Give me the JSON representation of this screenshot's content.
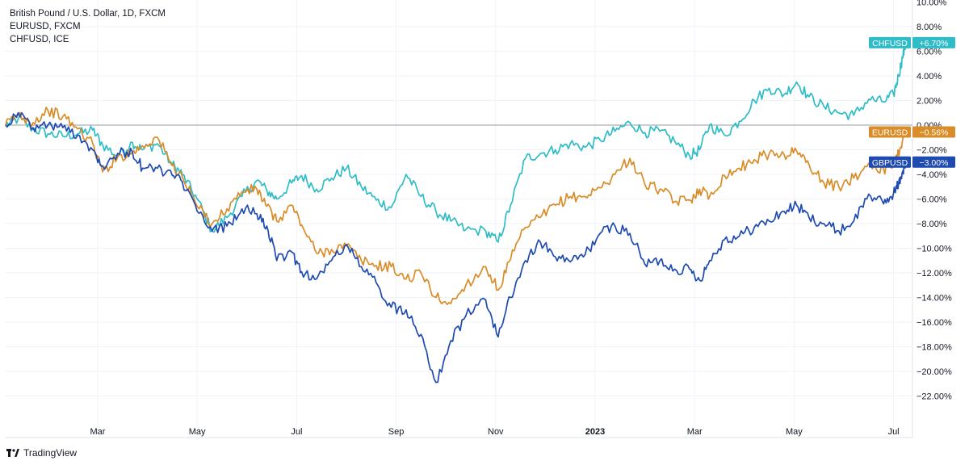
{
  "legend": {
    "line1": "British Pound / U.S. Dollar, 1D, FXCM",
    "line2": "EURUSD, FXCM",
    "line3": "CHFUSD, ICE"
  },
  "brand": {
    "name": "TradingView"
  },
  "chart_data": {
    "type": "line",
    "y_unit": "%",
    "ylim": [
      -23,
      10
    ],
    "y_ticks": [
      "8.00%",
      "6.00%",
      "4.00%",
      "2.00%",
      "0.00%",
      "−2.00%",
      "−4.00%",
      "−6.00%",
      "−8.00%",
      "−10.00%",
      "−12.00%",
      "−14.00%",
      "−16.00%",
      "−18.00%",
      "−20.00%",
      "−22.00%"
    ],
    "y_tick_values": [
      8,
      6,
      4,
      2,
      0,
      -2,
      -4,
      -6,
      -8,
      -10,
      -12,
      -14,
      -16,
      -18,
      -20,
      -22
    ],
    "x_ticks": [
      {
        "label": "Mar",
        "t": 2.0,
        "bold": false
      },
      {
        "label": "May",
        "t": 4.0,
        "bold": false
      },
      {
        "label": "Jul",
        "t": 6.0,
        "bold": false
      },
      {
        "label": "Sep",
        "t": 8.0,
        "bold": false
      },
      {
        "label": "Nov",
        "t": 10.0,
        "bold": false
      },
      {
        "label": "2023",
        "t": 12.0,
        "bold": true
      },
      {
        "label": "Mar",
        "t": 14.0,
        "bold": false
      },
      {
        "label": "May",
        "t": 16.0,
        "bold": false
      },
      {
        "label": "Jul",
        "t": 18.0,
        "bold": false
      }
    ],
    "x_range": [
      0.15,
      18.25
    ],
    "zero_line": true,
    "series": [
      {
        "name": "CHFUSD",
        "color": "#2fbcc7",
        "badge": "+6.70%",
        "points": [
          [
            0.15,
            0
          ],
          [
            0.4,
            0.5
          ],
          [
            0.7,
            -0.3
          ],
          [
            1.0,
            -0.7
          ],
          [
            1.3,
            -0.9
          ],
          [
            1.6,
            -0.7
          ],
          [
            1.9,
            -0.4
          ],
          [
            2.1,
            -1.6
          ],
          [
            2.4,
            -2.5
          ],
          [
            2.7,
            -1.4
          ],
          [
            2.9,
            -2.0
          ],
          [
            3.2,
            -1.5
          ],
          [
            3.5,
            -3.2
          ],
          [
            3.7,
            -4.0
          ],
          [
            4.0,
            -6.0
          ],
          [
            4.3,
            -8.6
          ],
          [
            4.6,
            -7.5
          ],
          [
            4.9,
            -5.8
          ],
          [
            5.2,
            -4.5
          ],
          [
            5.4,
            -5.3
          ],
          [
            5.6,
            -6.0
          ],
          [
            5.9,
            -4.7
          ],
          [
            6.1,
            -4.1
          ],
          [
            6.4,
            -5.2
          ],
          [
            6.7,
            -4.3
          ],
          [
            7.0,
            -3.5
          ],
          [
            7.3,
            -5.0
          ],
          [
            7.6,
            -6.1
          ],
          [
            7.9,
            -6.7
          ],
          [
            8.2,
            -4.0
          ],
          [
            8.5,
            -5.8
          ],
          [
            8.8,
            -7.0
          ],
          [
            9.1,
            -7.8
          ],
          [
            9.4,
            -8.5
          ],
          [
            9.8,
            -8.6
          ],
          [
            10.05,
            -9.5
          ],
          [
            10.3,
            -6.5
          ],
          [
            10.6,
            -2.7
          ],
          [
            10.9,
            -2.3
          ],
          [
            11.2,
            -2.0
          ],
          [
            11.5,
            -1.5
          ],
          [
            11.8,
            -1.8
          ],
          [
            12.1,
            -1.2
          ],
          [
            12.4,
            -0.5
          ],
          [
            12.7,
            0.2
          ],
          [
            13.0,
            -0.6
          ],
          [
            13.3,
            -0.5
          ],
          [
            13.6,
            -1.3
          ],
          [
            13.9,
            -2.5
          ],
          [
            14.1,
            -2.0
          ],
          [
            14.3,
            0.0
          ],
          [
            14.6,
            -0.8
          ],
          [
            14.9,
            0.3
          ],
          [
            15.2,
            2.0
          ],
          [
            15.5,
            3.0
          ],
          [
            15.8,
            2.5
          ],
          [
            16.05,
            3.5
          ],
          [
            16.3,
            2.3
          ],
          [
            16.6,
            1.5
          ],
          [
            16.9,
            1.0
          ],
          [
            17.2,
            0.8
          ],
          [
            17.5,
            2.1
          ],
          [
            17.8,
            1.9
          ],
          [
            18.0,
            2.5
          ],
          [
            18.1,
            4.0
          ],
          [
            18.18,
            5.5
          ],
          [
            18.25,
            6.7
          ]
        ]
      },
      {
        "name": "EURUSD",
        "color": "#d98c27",
        "badge": "−0.56%",
        "points": [
          [
            0.15,
            0
          ],
          [
            0.4,
            0.9
          ],
          [
            0.7,
            0.2
          ],
          [
            1.0,
            1.2
          ],
          [
            1.3,
            0.7
          ],
          [
            1.6,
            -0.3
          ],
          [
            1.9,
            -1.5
          ],
          [
            2.1,
            -3.8
          ],
          [
            2.4,
            -2.6
          ],
          [
            2.7,
            -2.2
          ],
          [
            2.9,
            -1.7
          ],
          [
            3.2,
            -1.0
          ],
          [
            3.5,
            -3.3
          ],
          [
            3.7,
            -4.2
          ],
          [
            4.0,
            -6.6
          ],
          [
            4.3,
            -8.0
          ],
          [
            4.6,
            -6.8
          ],
          [
            4.9,
            -5.4
          ],
          [
            5.2,
            -5.2
          ],
          [
            5.4,
            -6.6
          ],
          [
            5.6,
            -7.8
          ],
          [
            5.9,
            -6.5
          ],
          [
            6.1,
            -8.1
          ],
          [
            6.4,
            -10.4
          ],
          [
            6.7,
            -10.1
          ],
          [
            7.0,
            -9.8
          ],
          [
            7.3,
            -11.0
          ],
          [
            7.6,
            -11.4
          ],
          [
            7.9,
            -11.5
          ],
          [
            8.2,
            -12.5
          ],
          [
            8.5,
            -12.0
          ],
          [
            8.8,
            -14.0
          ],
          [
            9.1,
            -14.5
          ],
          [
            9.4,
            -13.0
          ],
          [
            9.8,
            -11.5
          ],
          [
            10.05,
            -13.4
          ],
          [
            10.3,
            -10.9
          ],
          [
            10.6,
            -8.3
          ],
          [
            10.9,
            -7.5
          ],
          [
            11.2,
            -6.5
          ],
          [
            11.5,
            -5.8
          ],
          [
            11.8,
            -5.8
          ],
          [
            12.1,
            -5.1
          ],
          [
            12.4,
            -4.0
          ],
          [
            12.7,
            -2.7
          ],
          [
            13.0,
            -4.8
          ],
          [
            13.3,
            -5.2
          ],
          [
            13.6,
            -6.2
          ],
          [
            13.9,
            -6.1
          ],
          [
            14.1,
            -5.2
          ],
          [
            14.3,
            -5.8
          ],
          [
            14.6,
            -4.1
          ],
          [
            14.9,
            -3.5
          ],
          [
            15.2,
            -2.8
          ],
          [
            15.5,
            -2.3
          ],
          [
            15.8,
            -2.4
          ],
          [
            16.05,
            -2.1
          ],
          [
            16.3,
            -3.2
          ],
          [
            16.6,
            -4.7
          ],
          [
            16.9,
            -5.0
          ],
          [
            17.2,
            -4.3
          ],
          [
            17.5,
            -3.1
          ],
          [
            17.8,
            -3.6
          ],
          [
            18.0,
            -3.2
          ],
          [
            18.1,
            -2.2
          ],
          [
            18.18,
            -1.2
          ],
          [
            18.25,
            -0.56
          ]
        ]
      },
      {
        "name": "GBPUSD",
        "color": "#1f4aaf",
        "badge": "−3.00%",
        "points": [
          [
            0.15,
            0
          ],
          [
            0.4,
            1.0
          ],
          [
            0.7,
            -0.2
          ],
          [
            1.0,
            0.0
          ],
          [
            1.3,
            -0.2
          ],
          [
            1.6,
            -0.8
          ],
          [
            1.9,
            -2.0
          ],
          [
            2.1,
            -3.3
          ],
          [
            2.4,
            -2.3
          ],
          [
            2.7,
            -2.2
          ],
          [
            2.9,
            -3.5
          ],
          [
            3.2,
            -3.5
          ],
          [
            3.5,
            -4.1
          ],
          [
            3.7,
            -4.6
          ],
          [
            4.0,
            -7.0
          ],
          [
            4.3,
            -8.6
          ],
          [
            4.6,
            -8.2
          ],
          [
            4.9,
            -6.8
          ],
          [
            5.2,
            -7.2
          ],
          [
            5.4,
            -8.2
          ],
          [
            5.6,
            -11.0
          ],
          [
            5.9,
            -10.3
          ],
          [
            6.1,
            -11.9
          ],
          [
            6.4,
            -12.5
          ],
          [
            6.7,
            -11.0
          ],
          [
            7.0,
            -9.7
          ],
          [
            7.3,
            -11.5
          ],
          [
            7.6,
            -12.8
          ],
          [
            7.9,
            -14.8
          ],
          [
            8.2,
            -15.0
          ],
          [
            8.5,
            -17.0
          ],
          [
            8.8,
            -20.9
          ],
          [
            9.1,
            -17.5
          ],
          [
            9.4,
            -15.5
          ],
          [
            9.8,
            -14.2
          ],
          [
            10.05,
            -17.2
          ],
          [
            10.3,
            -14.0
          ],
          [
            10.6,
            -11.0
          ],
          [
            10.9,
            -9.5
          ],
          [
            11.2,
            -10.7
          ],
          [
            11.5,
            -11.1
          ],
          [
            11.8,
            -10.5
          ],
          [
            12.1,
            -8.8
          ],
          [
            12.4,
            -8.2
          ],
          [
            12.7,
            -8.8
          ],
          [
            13.0,
            -11.3
          ],
          [
            13.3,
            -11.0
          ],
          [
            13.6,
            -11.7
          ],
          [
            13.9,
            -11.7
          ],
          [
            14.1,
            -12.6
          ],
          [
            14.3,
            -11.0
          ],
          [
            14.6,
            -9.3
          ],
          [
            14.9,
            -9.0
          ],
          [
            15.2,
            -8.3
          ],
          [
            15.5,
            -7.8
          ],
          [
            15.8,
            -7.0
          ],
          [
            16.05,
            -6.5
          ],
          [
            16.3,
            -7.5
          ],
          [
            16.6,
            -8.0
          ],
          [
            16.9,
            -8.6
          ],
          [
            17.2,
            -7.8
          ],
          [
            17.5,
            -5.6
          ],
          [
            17.8,
            -6.4
          ],
          [
            18.0,
            -5.5
          ],
          [
            18.1,
            -4.8
          ],
          [
            18.18,
            -3.8
          ],
          [
            18.25,
            -3.0
          ]
        ]
      }
    ]
  }
}
